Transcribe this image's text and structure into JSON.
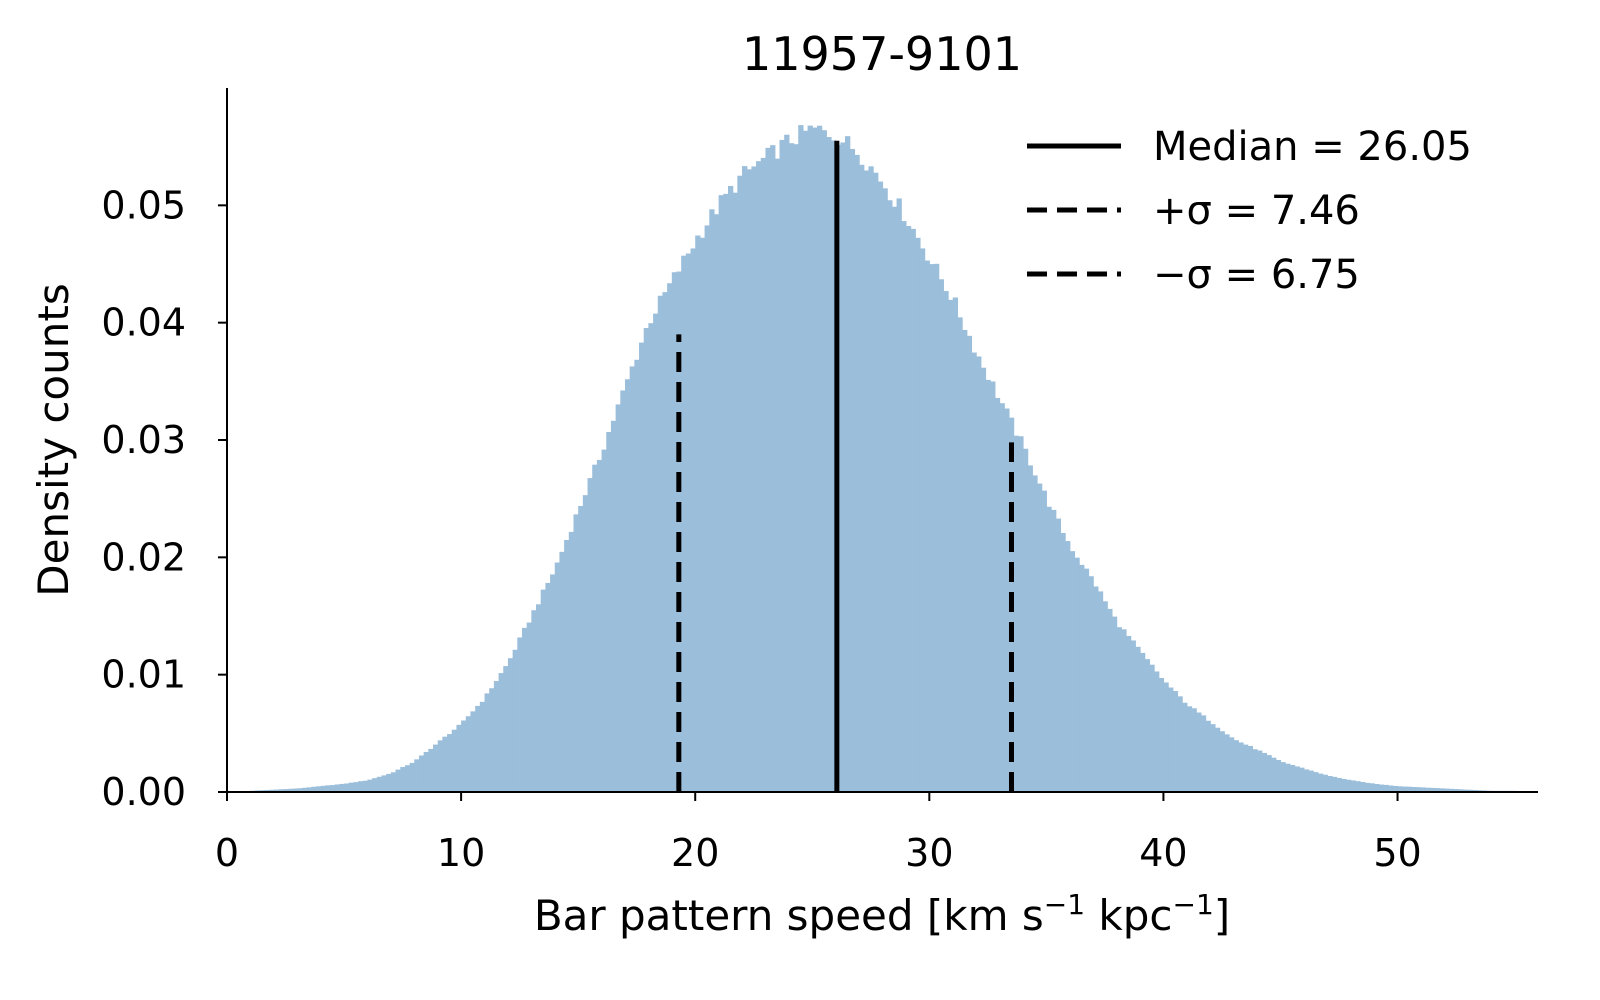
{
  "chart_data": {
    "type": "bar",
    "title": "11957-9101",
    "xlabel": {
      "main": "Bar pattern speed [km s",
      "sup1": "−1",
      "mid": " kpc",
      "sup2": "−1",
      "end": "]"
    },
    "ylabel": "Density counts",
    "xlim": [
      0,
      56
    ],
    "ylim": [
      0,
      0.06
    ],
    "xticks": [
      0,
      10,
      20,
      30,
      40,
      50
    ],
    "yticks": [
      0.0,
      0.01,
      0.02,
      0.03,
      0.04,
      0.05
    ],
    "ytick_labels": [
      "0.00",
      "0.01",
      "0.02",
      "0.03",
      "0.04",
      "0.05"
    ],
    "grid": false,
    "legend_position": "top-right",
    "histogram": {
      "color": "#9bbedb",
      "bin_width": 0.2,
      "x": [
        0,
        1,
        2,
        3,
        4,
        5,
        6,
        7,
        8,
        9,
        10,
        11,
        12,
        13,
        14,
        15,
        16,
        17,
        18,
        19,
        20,
        21,
        22,
        23,
        24,
        25,
        26,
        27,
        28,
        29,
        30,
        31,
        32,
        33,
        34,
        35,
        36,
        37,
        38,
        39,
        40,
        41,
        42,
        43,
        44,
        45,
        46,
        47,
        48,
        49,
        50,
        51,
        52,
        53,
        54,
        55,
        56
      ],
      "density": [
        0.0,
        0.0001,
        0.0002,
        0.0003,
        0.0005,
        0.0007,
        0.001,
        0.0016,
        0.0026,
        0.0042,
        0.0058,
        0.008,
        0.011,
        0.015,
        0.019,
        0.024,
        0.029,
        0.0345,
        0.04,
        0.0435,
        0.047,
        0.05,
        0.0525,
        0.054,
        0.0555,
        0.0565,
        0.056,
        0.0545,
        0.052,
        0.049,
        0.0455,
        0.042,
        0.0375,
        0.0335,
        0.0295,
        0.025,
        0.021,
        0.018,
        0.0145,
        0.012,
        0.0095,
        0.0075,
        0.006,
        0.0045,
        0.0036,
        0.0026,
        0.002,
        0.0014,
        0.001,
        0.0007,
        0.0005,
        0.0004,
        0.0003,
        0.0002,
        0.0001,
        0.0001,
        0.0
      ]
    },
    "lines": [
      {
        "name": "Median = 26.05",
        "x": 26.05,
        "ymax": 0.0555,
        "style": "solid"
      },
      {
        "name": "+σ = 7.46",
        "x": 33.51,
        "ymax": 0.0298,
        "style": "dashed"
      },
      {
        "name": "−σ = 6.75",
        "x": 19.3,
        "ymax": 0.039,
        "style": "dashed"
      }
    ]
  }
}
